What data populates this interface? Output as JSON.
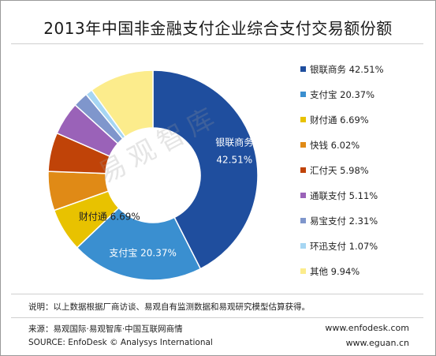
{
  "title": "2013年中国非金融支付企业综合支付交易额份额",
  "watermark": "易观智库",
  "chart_data": {
    "type": "donut",
    "title": "2013年中国非金融支付企业综合支付交易额份额",
    "unit": "%",
    "series": [
      {
        "name": "银联商务",
        "value": 42.51,
        "color": "#1f4e9e"
      },
      {
        "name": "支付宝",
        "value": 20.37,
        "color": "#3a8fd0"
      },
      {
        "name": "财付通",
        "value": 6.69,
        "color": "#e8c200"
      },
      {
        "name": "快钱",
        "value": 6.02,
        "color": "#e08a16"
      },
      {
        "name": "汇付天",
        "value": 5.98,
        "color": "#c04308"
      },
      {
        "name": "通联支付",
        "value": 5.11,
        "color": "#9a62b8"
      },
      {
        "name": "易宝支付",
        "value": 2.31,
        "color": "#7f96cc"
      },
      {
        "name": "环迅支付",
        "value": 1.07,
        "color": "#a6d6f3"
      },
      {
        "name": "其他",
        "value": 9.94,
        "color": "#fcec8c"
      }
    ],
    "legend": [
      "银联商务 42.51%",
      "支付宝 20.37%",
      "财付通 6.69%",
      "快钱 6.02%",
      "汇付天 5.98%",
      "通联支付 5.11%",
      "易宝支付 2.31%",
      "环迅支付 1.07%",
      "其他 9.94%"
    ],
    "data_labels": [
      {
        "series": "银联商务",
        "name": "银联商务",
        "value": "42.51%",
        "color": "#ffffff"
      },
      {
        "series": "支付宝",
        "name": "支付宝",
        "value": "20.37%",
        "color": "#ffffff"
      },
      {
        "series": "财付通",
        "name": "财付通",
        "value": "6.69%",
        "color": "#222222"
      }
    ],
    "legend_position": "right"
  },
  "footer": {
    "note": "说明：以上数据根据厂商访谈、易观自有监测数据和易观研究模型估算获得。",
    "source_cn": "来源：易观国际·易观智库·中国互联网商情",
    "source_en": "SOURCE: EnfoDesk © Analysys International",
    "url1": "www.enfodesk.com",
    "url2": "www.eguan.cn"
  }
}
